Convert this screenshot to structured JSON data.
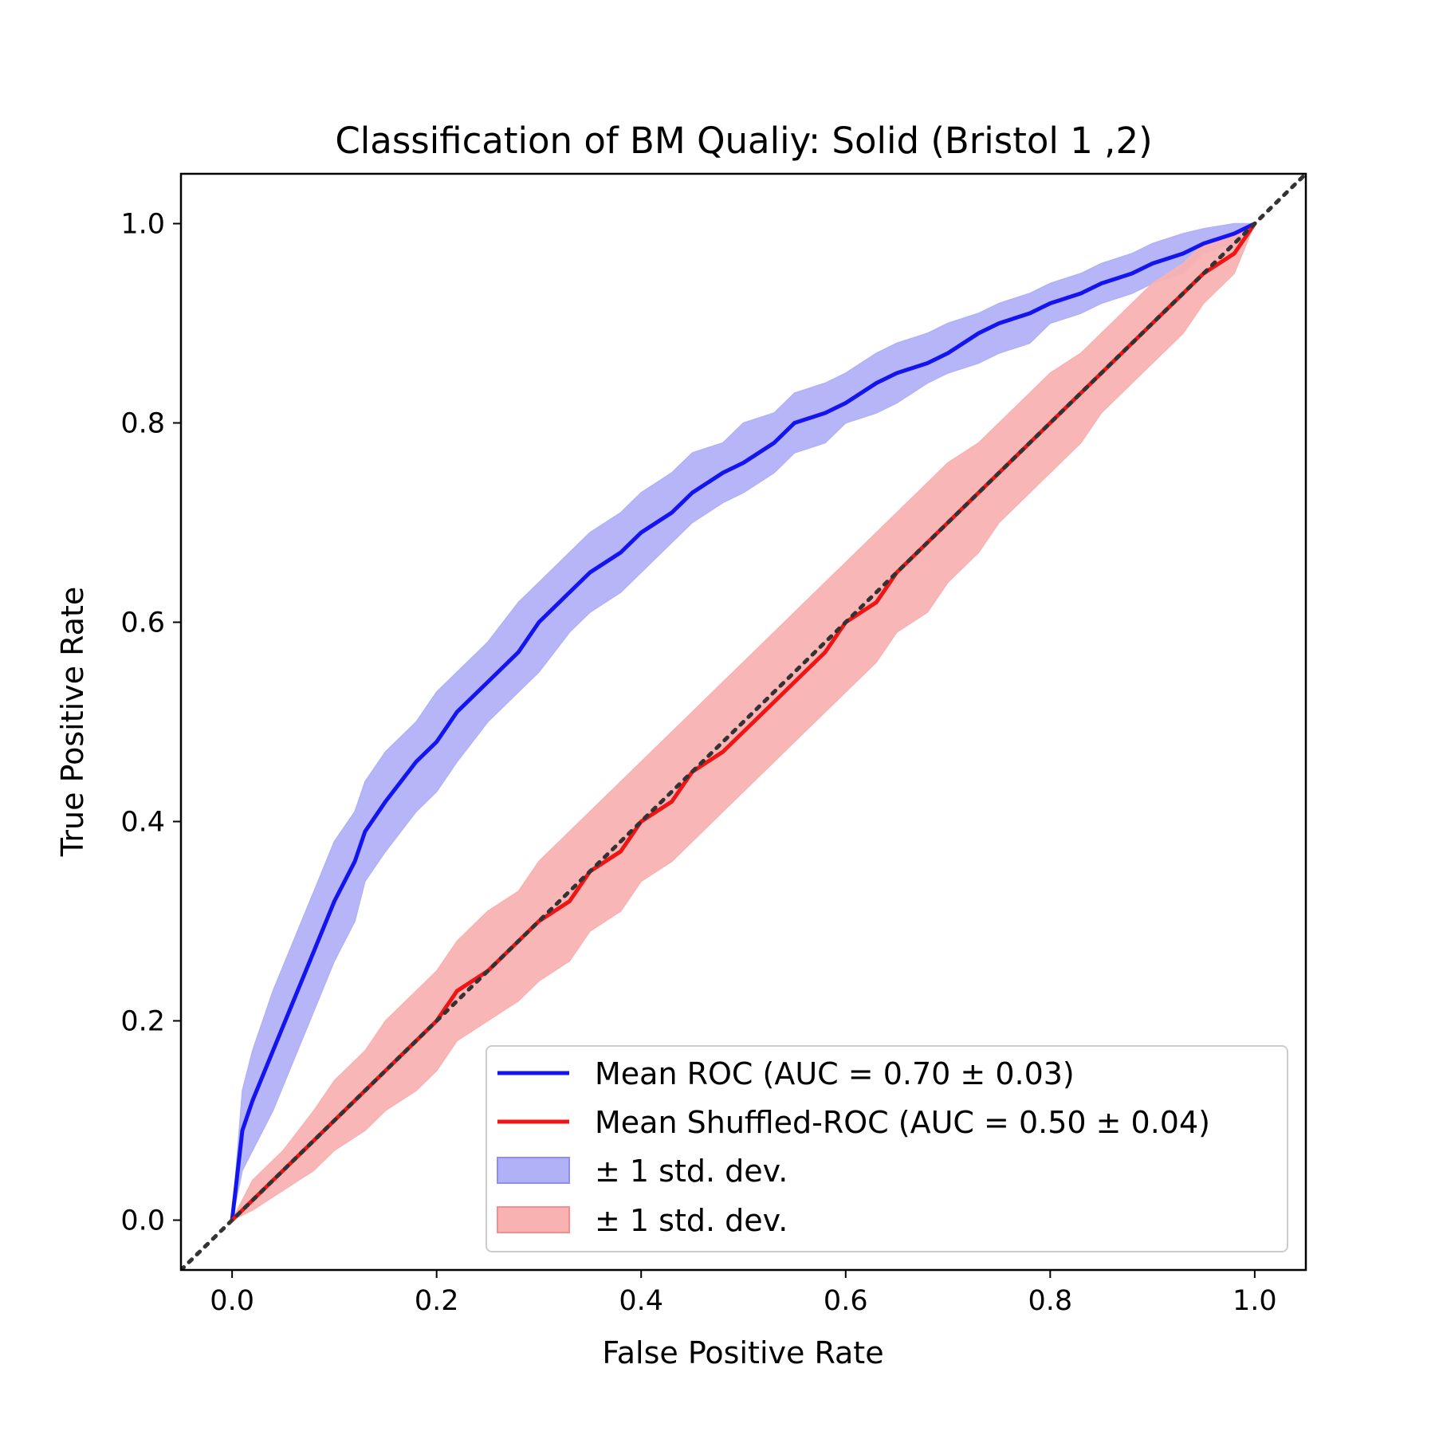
{
  "chart_data": {
    "type": "line",
    "title": "Classification of BM Qualiy: Solid (Bristol 1 ,2)",
    "xlabel": "False Positive Rate",
    "ylabel": "True Positive Rate",
    "xlim": [
      -0.05,
      1.05
    ],
    "ylim": [
      -0.05,
      1.05
    ],
    "xticks": [
      "0.0",
      "0.2",
      "0.4",
      "0.6",
      "0.8",
      "1.0"
    ],
    "yticks": [
      "0.0",
      "0.2",
      "0.4",
      "0.6",
      "0.8",
      "1.0"
    ],
    "grid": false,
    "legend_position": "lower-right",
    "legend": [
      {
        "label": "Mean ROC (AUC = 0.70 ± 0.03)",
        "kind": "line",
        "color": "#1414f0"
      },
      {
        "label": "Mean Shuffled-ROC (AUC = 0.50 ± 0.04)",
        "kind": "line",
        "color": "#f01414"
      },
      {
        "label": "± 1 std. dev.",
        "kind": "band",
        "color": "#b1b1f7"
      },
      {
        "label": "± 1 std. dev.",
        "kind": "band",
        "color": "#f9b2b2"
      }
    ],
    "series": [
      {
        "color": "#1414f0",
        "band_color": "#b1b1f7",
        "x": [
          0.0,
          0.01,
          0.02,
          0.04,
          0.06,
          0.08,
          0.1,
          0.12,
          0.13,
          0.15,
          0.18,
          0.2,
          0.22,
          0.25,
          0.28,
          0.3,
          0.33,
          0.35,
          0.38,
          0.4,
          0.43,
          0.45,
          0.48,
          0.5,
          0.53,
          0.55,
          0.58,
          0.6,
          0.63,
          0.65,
          0.68,
          0.7,
          0.73,
          0.75,
          0.78,
          0.8,
          0.83,
          0.85,
          0.88,
          0.9,
          0.93,
          0.95,
          0.98,
          1.0
        ],
        "y": [
          0.0,
          0.09,
          0.12,
          0.17,
          0.22,
          0.27,
          0.32,
          0.36,
          0.39,
          0.42,
          0.46,
          0.48,
          0.51,
          0.54,
          0.57,
          0.6,
          0.63,
          0.65,
          0.67,
          0.69,
          0.71,
          0.73,
          0.75,
          0.76,
          0.78,
          0.8,
          0.81,
          0.82,
          0.84,
          0.85,
          0.86,
          0.87,
          0.89,
          0.9,
          0.91,
          0.92,
          0.93,
          0.94,
          0.95,
          0.96,
          0.97,
          0.98,
          0.99,
          1.0
        ],
        "upper": [
          0.0,
          0.13,
          0.17,
          0.23,
          0.28,
          0.33,
          0.38,
          0.41,
          0.44,
          0.47,
          0.5,
          0.53,
          0.55,
          0.58,
          0.62,
          0.64,
          0.67,
          0.69,
          0.71,
          0.73,
          0.75,
          0.77,
          0.78,
          0.8,
          0.81,
          0.83,
          0.84,
          0.85,
          0.87,
          0.88,
          0.89,
          0.9,
          0.91,
          0.92,
          0.93,
          0.94,
          0.95,
          0.96,
          0.97,
          0.98,
          0.99,
          0.995,
          1.0,
          1.0
        ],
        "lower": [
          0.0,
          0.05,
          0.07,
          0.11,
          0.16,
          0.21,
          0.26,
          0.3,
          0.34,
          0.37,
          0.41,
          0.43,
          0.46,
          0.5,
          0.53,
          0.55,
          0.59,
          0.61,
          0.63,
          0.65,
          0.68,
          0.7,
          0.72,
          0.73,
          0.75,
          0.77,
          0.78,
          0.8,
          0.81,
          0.82,
          0.84,
          0.85,
          0.86,
          0.87,
          0.88,
          0.9,
          0.91,
          0.92,
          0.93,
          0.94,
          0.95,
          0.97,
          0.98,
          1.0
        ]
      },
      {
        "color": "#f01414",
        "band_color": "#f9b2b2",
        "x": [
          0.0,
          0.02,
          0.05,
          0.08,
          0.1,
          0.13,
          0.15,
          0.18,
          0.2,
          0.22,
          0.25,
          0.28,
          0.3,
          0.33,
          0.35,
          0.38,
          0.4,
          0.43,
          0.45,
          0.48,
          0.5,
          0.53,
          0.55,
          0.58,
          0.6,
          0.63,
          0.65,
          0.68,
          0.7,
          0.73,
          0.75,
          0.78,
          0.8,
          0.83,
          0.85,
          0.88,
          0.9,
          0.93,
          0.95,
          0.98,
          1.0
        ],
        "y": [
          0.0,
          0.02,
          0.05,
          0.08,
          0.1,
          0.13,
          0.15,
          0.18,
          0.2,
          0.23,
          0.25,
          0.28,
          0.3,
          0.32,
          0.35,
          0.37,
          0.4,
          0.42,
          0.45,
          0.47,
          0.49,
          0.52,
          0.54,
          0.57,
          0.6,
          0.62,
          0.65,
          0.68,
          0.7,
          0.73,
          0.75,
          0.78,
          0.8,
          0.83,
          0.85,
          0.88,
          0.9,
          0.93,
          0.95,
          0.97,
          1.0
        ],
        "upper": [
          0.0,
          0.04,
          0.07,
          0.11,
          0.14,
          0.17,
          0.2,
          0.23,
          0.25,
          0.28,
          0.31,
          0.33,
          0.36,
          0.39,
          0.41,
          0.44,
          0.46,
          0.49,
          0.51,
          0.54,
          0.56,
          0.59,
          0.61,
          0.64,
          0.66,
          0.69,
          0.71,
          0.74,
          0.76,
          0.78,
          0.8,
          0.83,
          0.85,
          0.87,
          0.89,
          0.92,
          0.94,
          0.96,
          0.98,
          0.99,
          1.0
        ],
        "lower": [
          0.0,
          0.01,
          0.03,
          0.05,
          0.07,
          0.09,
          0.11,
          0.13,
          0.15,
          0.18,
          0.2,
          0.22,
          0.24,
          0.26,
          0.29,
          0.31,
          0.34,
          0.36,
          0.38,
          0.41,
          0.43,
          0.46,
          0.48,
          0.51,
          0.53,
          0.56,
          0.59,
          0.61,
          0.64,
          0.67,
          0.7,
          0.73,
          0.75,
          0.78,
          0.81,
          0.84,
          0.86,
          0.89,
          0.92,
          0.95,
          1.0
        ]
      }
    ],
    "reference_line": {
      "x": [
        -0.05,
        1.05
      ],
      "y": [
        -0.05,
        1.05
      ],
      "color": "#333333",
      "style": "dotted"
    }
  }
}
